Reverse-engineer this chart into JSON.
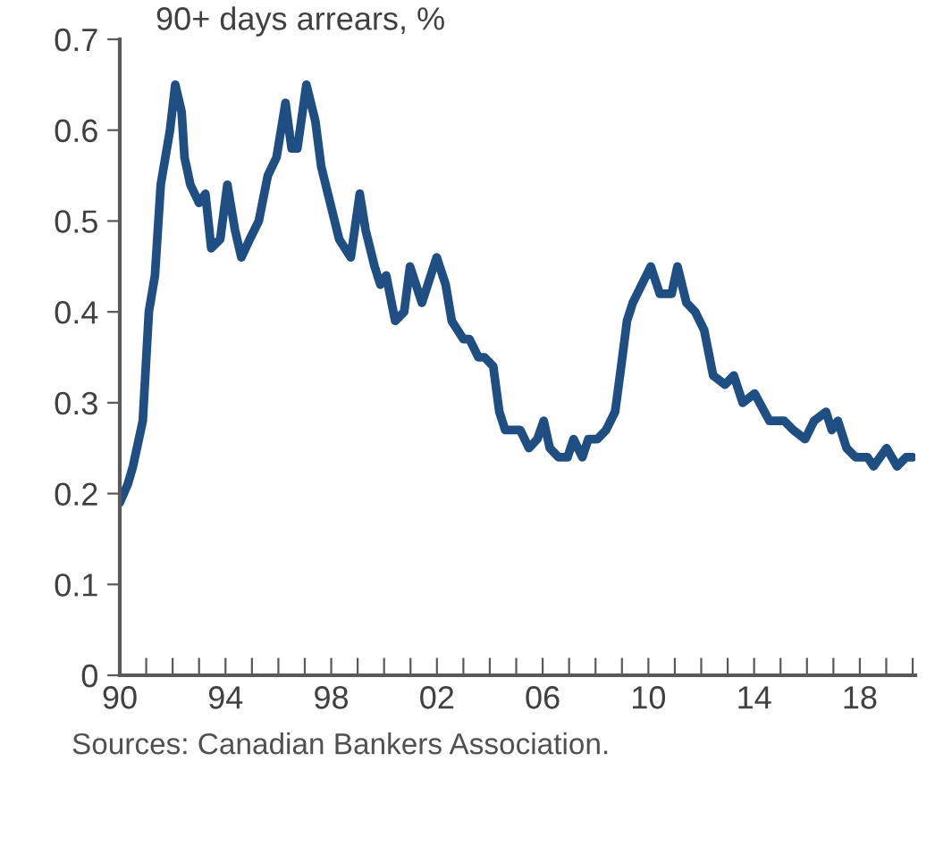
{
  "chart_data": {
    "type": "line",
    "title": "90+ days arrears, %",
    "annotations": [
      "Sources: Canadian Bankers Association."
    ],
    "xlim": [
      1990,
      2020.1
    ],
    "ylim": [
      0,
      0.7
    ],
    "yticks": [
      0,
      0.1,
      0.2,
      0.3,
      0.4,
      0.5,
      0.6,
      0.7
    ],
    "xticks": [
      {
        "value": 1990,
        "label": "90"
      },
      {
        "value": 1991,
        "label": null
      },
      {
        "value": 1992,
        "label": null
      },
      {
        "value": 1993,
        "label": null
      },
      {
        "value": 1994,
        "label": "94"
      },
      {
        "value": 1995,
        "label": null
      },
      {
        "value": 1996,
        "label": null
      },
      {
        "value": 1997,
        "label": null
      },
      {
        "value": 1998,
        "label": "98"
      },
      {
        "value": 1999,
        "label": null
      },
      {
        "value": 2000,
        "label": null
      },
      {
        "value": 2001,
        "label": null
      },
      {
        "value": 2002,
        "label": "02"
      },
      {
        "value": 2003,
        "label": null
      },
      {
        "value": 2004,
        "label": null
      },
      {
        "value": 2005,
        "label": null
      },
      {
        "value": 2006,
        "label": "06"
      },
      {
        "value": 2007,
        "label": null
      },
      {
        "value": 2008,
        "label": null
      },
      {
        "value": 2009,
        "label": null
      },
      {
        "value": 2010,
        "label": "10"
      },
      {
        "value": 2011,
        "label": null
      },
      {
        "value": 2012,
        "label": null
      },
      {
        "value": 2013,
        "label": null
      },
      {
        "value": 2014,
        "label": "14"
      },
      {
        "value": 2015,
        "label": null
      },
      {
        "value": 2016,
        "label": null
      },
      {
        "value": 2017,
        "label": null
      },
      {
        "value": 2018,
        "label": "18"
      },
      {
        "value": 2019,
        "label": null
      },
      {
        "value": 2020,
        "label": null
      }
    ],
    "grid": false,
    "line_style": "solid",
    "marker": "none",
    "series": [
      {
        "color": "#1f4e82",
        "x": [
          1990.0,
          1990.3,
          1990.5,
          1990.87,
          1991.1,
          1991.33,
          1991.55,
          1991.9,
          1992.1,
          1992.34,
          1992.45,
          1992.67,
          1993.0,
          1993.24,
          1993.46,
          1993.8,
          1994.07,
          1994.36,
          1994.6,
          1994.92,
          1995.26,
          1995.6,
          1995.93,
          1996.27,
          1996.5,
          1996.72,
          1997.06,
          1997.4,
          1997.62,
          1997.96,
          1998.3,
          1998.74,
          1999.08,
          1999.3,
          1999.64,
          1999.86,
          2000.08,
          2000.42,
          2000.76,
          2000.98,
          2001.43,
          2001.99,
          2002.33,
          2002.56,
          2003.0,
          2003.23,
          2003.57,
          2003.8,
          2004.13,
          2004.36,
          2004.58,
          2005.15,
          2005.48,
          2005.8,
          2006.04,
          2006.27,
          2006.6,
          2006.94,
          2007.17,
          2007.5,
          2007.73,
          2008.07,
          2008.4,
          2008.74,
          2008.97,
          2009.19,
          2009.41,
          2009.75,
          2010.09,
          2010.43,
          2010.88,
          2011.1,
          2011.44,
          2011.77,
          2012.11,
          2012.45,
          2012.9,
          2013.23,
          2013.57,
          2014.02,
          2014.58,
          2015.14,
          2015.48,
          2015.93,
          2016.27,
          2016.72,
          2016.94,
          2017.17,
          2017.5,
          2017.84,
          2018.29,
          2018.52,
          2019.01,
          2019.41,
          2019.75,
          2020.0
        ],
        "values": [
          0.19,
          0.21,
          0.23,
          0.28,
          0.4,
          0.44,
          0.54,
          0.6,
          0.65,
          0.62,
          0.57,
          0.54,
          0.52,
          0.53,
          0.47,
          0.48,
          0.54,
          0.49,
          0.46,
          0.48,
          0.5,
          0.55,
          0.57,
          0.63,
          0.58,
          0.58,
          0.65,
          0.61,
          0.56,
          0.52,
          0.48,
          0.46,
          0.53,
          0.49,
          0.45,
          0.43,
          0.44,
          0.39,
          0.4,
          0.45,
          0.41,
          0.46,
          0.43,
          0.39,
          0.37,
          0.37,
          0.35,
          0.35,
          0.34,
          0.29,
          0.27,
          0.27,
          0.25,
          0.26,
          0.28,
          0.25,
          0.24,
          0.24,
          0.26,
          0.24,
          0.26,
          0.26,
          0.27,
          0.29,
          0.34,
          0.39,
          0.41,
          0.43,
          0.45,
          0.42,
          0.42,
          0.45,
          0.41,
          0.4,
          0.38,
          0.33,
          0.32,
          0.33,
          0.3,
          0.31,
          0.28,
          0.28,
          0.27,
          0.26,
          0.28,
          0.29,
          0.27,
          0.28,
          0.25,
          0.24,
          0.24,
          0.23,
          0.25,
          0.23,
          0.24,
          0.24
        ]
      }
    ]
  }
}
